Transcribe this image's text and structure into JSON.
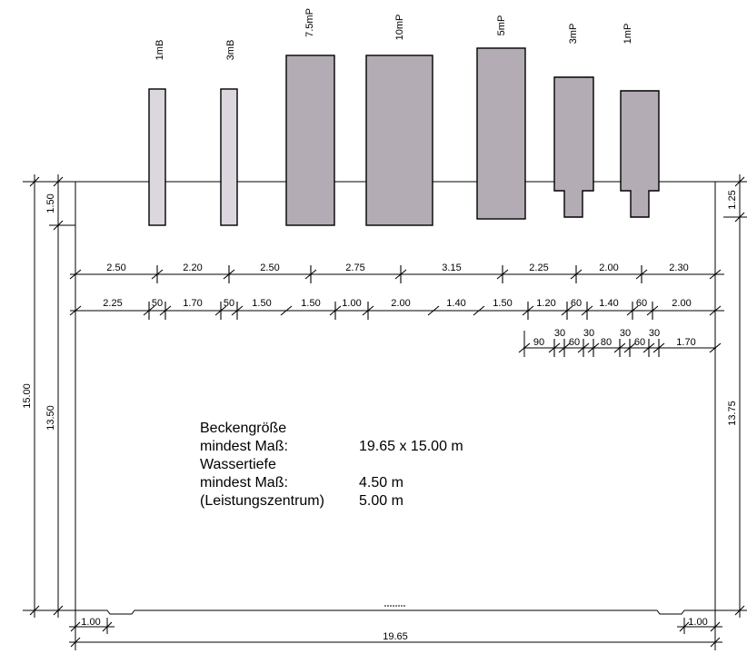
{
  "platforms": [
    {
      "id": "1mB",
      "label": "1mB"
    },
    {
      "id": "3mB",
      "label": "3mB"
    },
    {
      "id": "7_5mP",
      "label": "7.5mP"
    },
    {
      "id": "10mP",
      "label": "10mP"
    },
    {
      "id": "5mP",
      "label": "5mP"
    },
    {
      "id": "3mP",
      "label": "3mP"
    },
    {
      "id": "1mP",
      "label": "1mP"
    }
  ],
  "dim_row1": [
    "2.50",
    "2.20",
    "2.50",
    "2.75",
    "3.15",
    "2.25",
    "2.00",
    "2.30"
  ],
  "dim_row2": [
    "2.25",
    "50",
    "1.70",
    "50",
    "1.50",
    "1.50",
    "1.00",
    "2.00",
    "1.40",
    "1.50",
    "1.20",
    "60",
    "1.40",
    "60",
    "2.00"
  ],
  "dim_row3": [
    "90",
    "30",
    "60",
    "30",
    "80",
    "30",
    "60",
    "30",
    "1.70"
  ],
  "left_dims": {
    "total": "15.00",
    "top": "1.50",
    "bottom": "13.50"
  },
  "right_dims": {
    "top": "1.25",
    "bottom": "13.75"
  },
  "bottom_dims": {
    "left": "1.00",
    "right": "1.00",
    "total": "19.65"
  },
  "notes": {
    "line1": "Beckengröße",
    "line2_label": "mindest Maß:",
    "line2_value": "19.65 x 15.00 m",
    "line3": "Wassertiefe",
    "line4_label": "mindest Maß:",
    "line4_value": "4.50 m",
    "line5_label": "(Leistungszentrum)",
    "line5_value": "5.00 m"
  }
}
